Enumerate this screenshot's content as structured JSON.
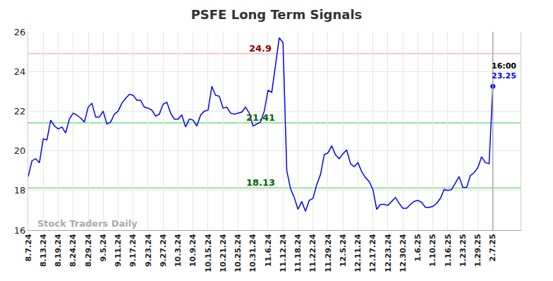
{
  "chart_data": {
    "type": "line",
    "title": "PSFE Long Term Signals",
    "watermark": "Stock Traders Daily",
    "color": "#0000ff",
    "grid": true,
    "ylim": [
      16,
      26
    ],
    "yticks": [
      16,
      18,
      20,
      22,
      24,
      26
    ],
    "categories": [
      "8.7.24",
      null,
      null,
      null,
      "8.13.24",
      null,
      null,
      null,
      "8.19.24",
      null,
      null,
      null,
      "8.24.24",
      null,
      null,
      null,
      "8.29.24",
      null,
      null,
      null,
      "9.5.24",
      null,
      null,
      null,
      "9.11.24",
      null,
      null,
      null,
      "9.17.24",
      null,
      null,
      null,
      "9.23.24",
      null,
      null,
      null,
      "9.27.24",
      null,
      null,
      null,
      "10.3.24",
      null,
      null,
      null,
      "10.9.24",
      null,
      null,
      null,
      "10.15.24",
      null,
      null,
      null,
      "10.21.24",
      null,
      null,
      null,
      "10.25.24",
      null,
      null,
      null,
      "10.31.24",
      null,
      null,
      null,
      "11.6.24",
      null,
      null,
      null,
      "11.12.24",
      null,
      null,
      null,
      "11.18.24",
      null,
      null,
      null,
      "11.22.24",
      null,
      null,
      null,
      "11.29.24",
      null,
      null,
      null,
      "12.5.24",
      null,
      null,
      null,
      "12.11.24",
      null,
      null,
      null,
      "12.17.24",
      null,
      null,
      null,
      "12.23.24",
      null,
      null,
      null,
      "12.30.24",
      null,
      null,
      null,
      "1.6.25",
      null,
      null,
      null,
      "1.10.25",
      null,
      null,
      null,
      "1.16.25",
      null,
      null,
      null,
      "1.23.25",
      null,
      null,
      null,
      "1.29.25",
      null,
      null,
      null,
      "2.7.25"
    ],
    "values": [
      18.7,
      19.5,
      19.6,
      19.4,
      20.6,
      20.55,
      21.55,
      21.25,
      21.1,
      21.2,
      20.9,
      21.6,
      21.9,
      21.8,
      21.65,
      21.45,
      22.2,
      22.4,
      21.7,
      21.7,
      22.0,
      21.35,
      21.45,
      21.85,
      22.0,
      22.4,
      22.65,
      22.85,
      22.8,
      22.55,
      22.55,
      22.2,
      22.15,
      22.05,
      21.75,
      21.85,
      22.35,
      22.45,
      21.9,
      21.6,
      21.6,
      21.8,
      21.2,
      21.6,
      21.55,
      21.25,
      21.8,
      22.0,
      22.05,
      23.25,
      22.8,
      22.75,
      22.15,
      22.2,
      21.9,
      21.85,
      21.9,
      21.95,
      22.2,
      21.9,
      21.25,
      21.35,
      21.45,
      22.0,
      23.05,
      22.95,
      24.4,
      25.7,
      25.45,
      19.0,
      18.1,
      17.65,
      17.05,
      17.45,
      16.95,
      17.5,
      17.6,
      18.3,
      18.8,
      19.8,
      19.9,
      20.25,
      19.8,
      19.6,
      19.85,
      20.05,
      19.35,
      19.2,
      19.4,
      18.95,
      18.65,
      18.45,
      18.05,
      17.05,
      17.3,
      17.3,
      17.25,
      17.45,
      17.65,
      17.35,
      17.1,
      17.1,
      17.3,
      17.45,
      17.5,
      17.4,
      17.15,
      17.15,
      17.2,
      17.35,
      17.6,
      18.05,
      18.0,
      18.05,
      18.35,
      18.7,
      18.15,
      18.15,
      18.75,
      18.9,
      19.15,
      19.7,
      19.4,
      19.35,
      23.25
    ],
    "reference_lines": [
      {
        "value": 24.9,
        "label": "24.9",
        "color": "#ffc8c8"
      },
      {
        "value": 21.41,
        "label": "21.41",
        "color": "#99e699"
      },
      {
        "value": 18.13,
        "label": "18.13",
        "color": "#99e699"
      }
    ],
    "last_point": {
      "time": "16:00",
      "value": 23.25,
      "label": "23.25"
    }
  }
}
